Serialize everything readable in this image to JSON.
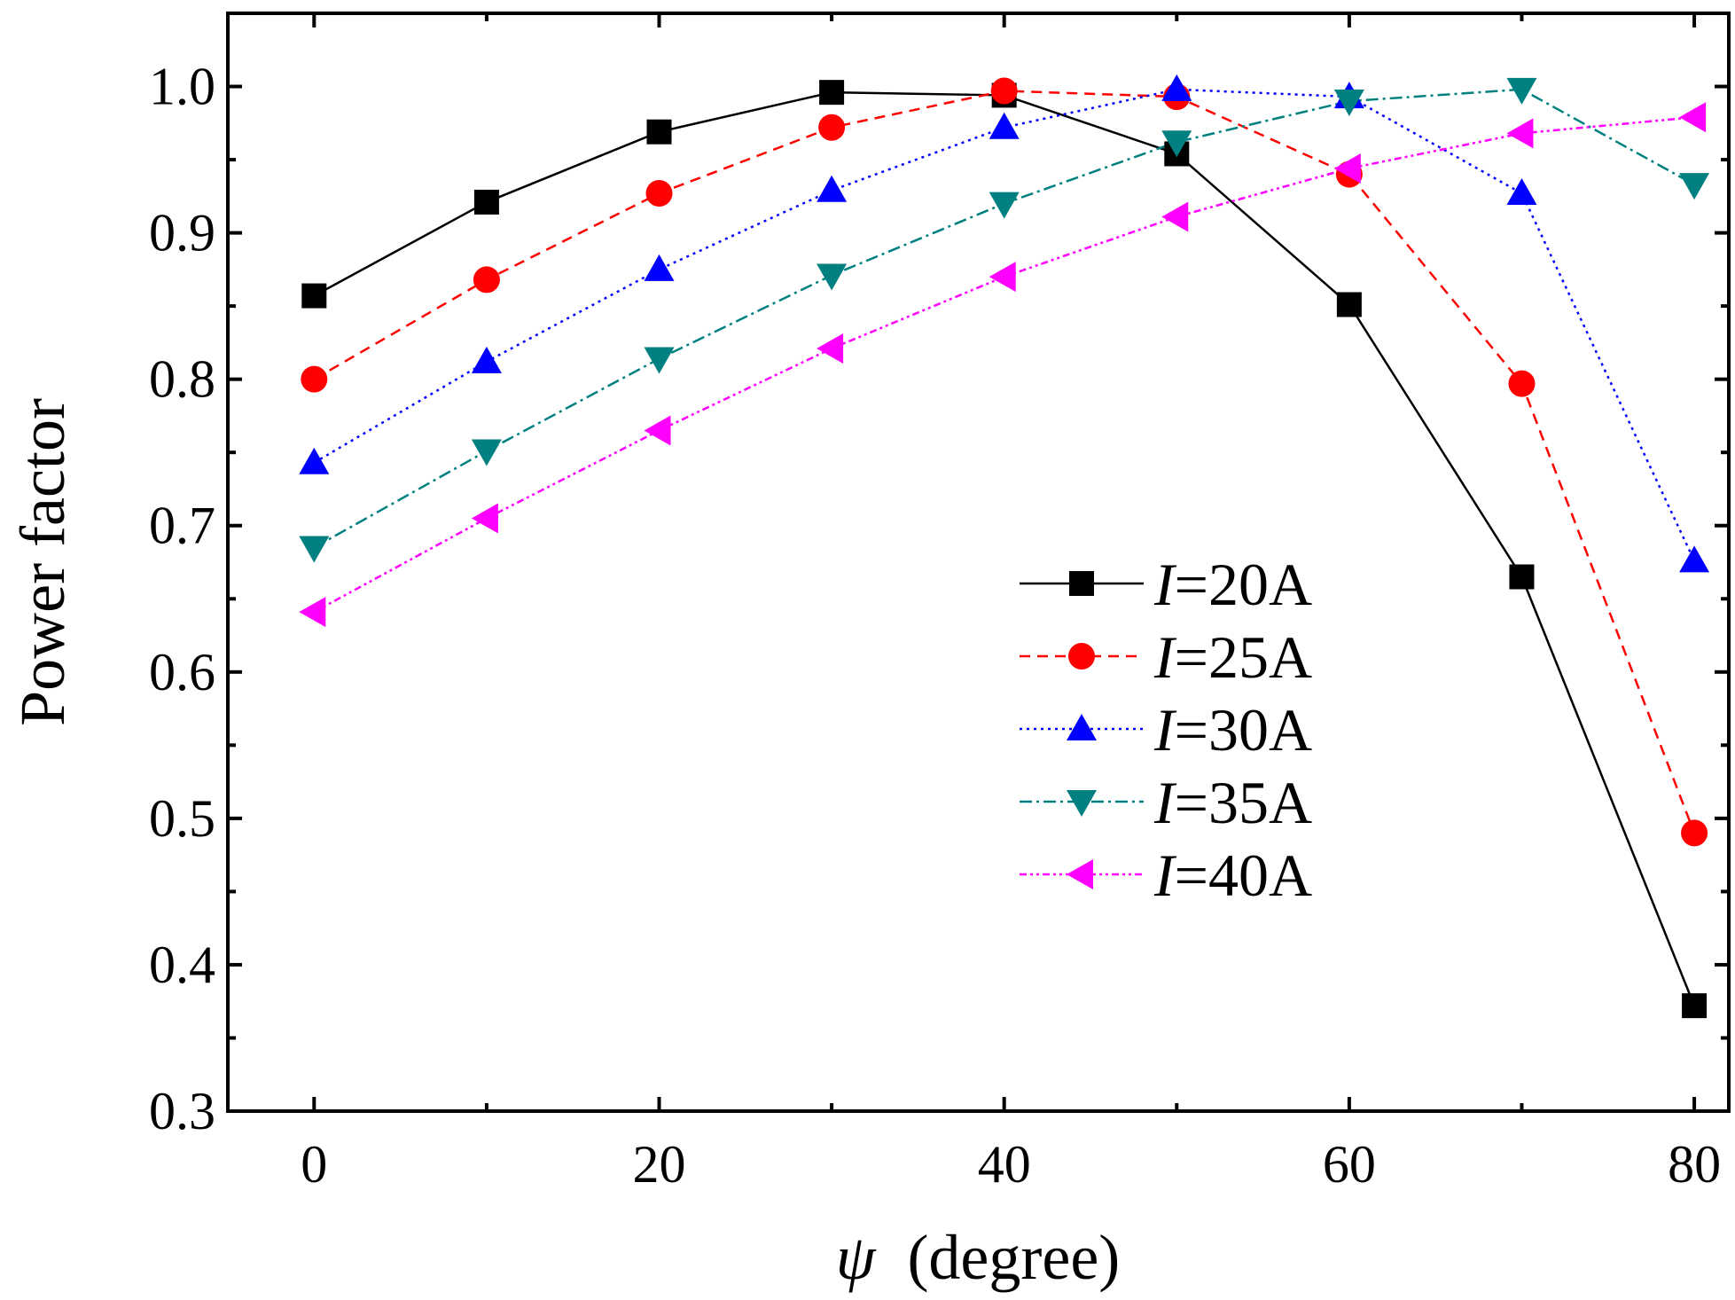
{
  "chart_data": {
    "type": "line",
    "title": "",
    "xlabel_symbol": "ψ",
    "xlabel_unit": "(degree)",
    "ylabel": "Power factor",
    "xlim": [
      -5,
      82
    ],
    "ylim": [
      0.3,
      1.05
    ],
    "xticks": [
      0,
      20,
      40,
      60,
      80
    ],
    "xtick_labels": [
      "0",
      "20",
      "40",
      "60",
      "80"
    ],
    "xminor": [
      10,
      30,
      50,
      70
    ],
    "yticks": [
      0.3,
      0.4,
      0.5,
      0.6,
      0.7,
      0.8,
      0.9,
      1.0
    ],
    "ytick_labels": [
      "0.3",
      "0.4",
      "0.5",
      "0.6",
      "0.7",
      "0.8",
      "0.9",
      "1.0"
    ],
    "yminor": [
      0.35,
      0.45,
      0.55,
      0.65,
      0.75,
      0.85,
      0.95
    ],
    "x": [
      0,
      10,
      20,
      30,
      40,
      50,
      60,
      70,
      80
    ],
    "legend_position": "center-right",
    "series": [
      {
        "name": "I=20A",
        "label_var": "I",
        "label_rest": "=20A",
        "color": "#000000",
        "marker": "square",
        "dash": "",
        "values": [
          0.857,
          0.921,
          0.969,
          0.996,
          0.994,
          0.954,
          0.851,
          0.665,
          0.372
        ]
      },
      {
        "name": "I=25A",
        "label_var": "I",
        "label_rest": "=25A",
        "color": "#ff0000",
        "marker": "circle",
        "dash": "12,8",
        "values": [
          0.8,
          0.868,
          0.927,
          0.972,
          0.997,
          0.993,
          0.94,
          0.797,
          0.49
        ]
      },
      {
        "name": "I=30A",
        "label_var": "I",
        "label_rest": "=30A",
        "color": "#0000ff",
        "marker": "triangle-up",
        "dash": "3,5",
        "values": [
          0.743,
          0.812,
          0.875,
          0.929,
          0.972,
          0.998,
          0.993,
          0.927,
          0.676
        ]
      },
      {
        "name": "I=35A",
        "label_var": "I",
        "label_rest": "=35A",
        "color": "#008080",
        "marker": "triangle-down",
        "dash": "14,5,3,5",
        "values": [
          0.685,
          0.751,
          0.814,
          0.871,
          0.92,
          0.962,
          0.99,
          0.998,
          0.933
        ]
      },
      {
        "name": "I=40A",
        "label_var": "I",
        "label_rest": "=40A",
        "color": "#ff00ff",
        "marker": "triangle-left",
        "dash": "8,4,3,4,3,4",
        "values": [
          0.641,
          0.705,
          0.765,
          0.821,
          0.87,
          0.911,
          0.944,
          0.968,
          0.979
        ]
      }
    ]
  }
}
